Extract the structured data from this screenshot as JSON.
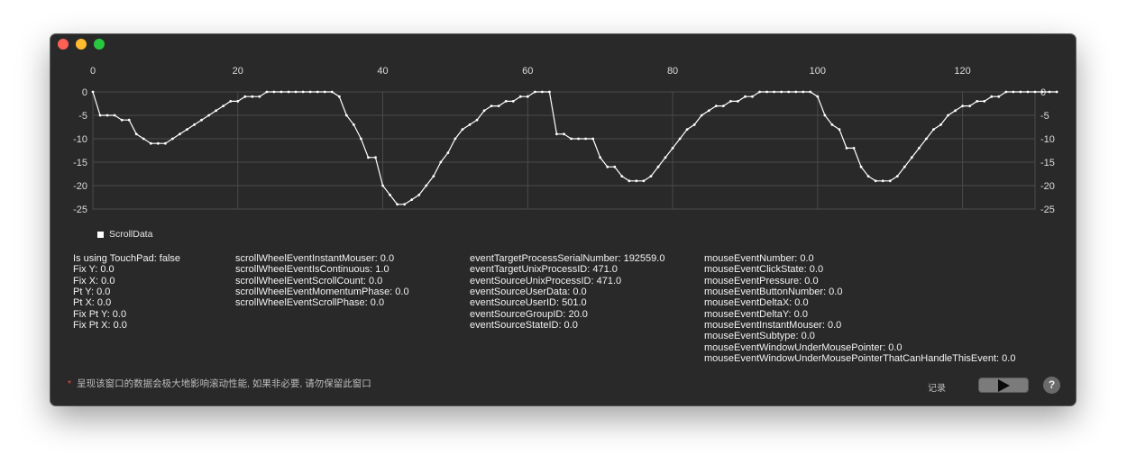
{
  "window": {
    "traffic_lights": [
      {
        "name": "close",
        "color": "#fe5f57"
      },
      {
        "name": "minimize",
        "color": "#febc2e"
      },
      {
        "name": "zoom",
        "color": "#28c840"
      }
    ]
  },
  "chart_data": {
    "type": "line",
    "series": [
      {
        "name": "ScrollData",
        "color": "#ffffff",
        "values": [
          0,
          -5,
          -5,
          -5,
          -6,
          -6,
          -9,
          -10,
          -11,
          -11,
          -11,
          -10,
          -9,
          -8,
          -7,
          -6,
          -5,
          -4,
          -3,
          -2,
          -2,
          -1,
          -1,
          -1,
          0,
          0,
          0,
          0,
          0,
          0,
          0,
          0,
          0,
          0,
          -1,
          -5,
          -7,
          -10,
          -14,
          -14,
          -20,
          -22,
          -24,
          -24,
          -23,
          -22,
          -20,
          -18,
          -15,
          -13,
          -10,
          -8,
          -7,
          -6,
          -4,
          -3,
          -3,
          -2,
          -2,
          -1,
          -1,
          0,
          0,
          0,
          -9,
          -9,
          -10,
          -10,
          -10,
          -10,
          -14,
          -16,
          -16,
          -18,
          -19,
          -19,
          -19,
          -18,
          -16,
          -14,
          -12,
          -10,
          -8,
          -7,
          -5,
          -4,
          -3,
          -3,
          -2,
          -2,
          -1,
          -1,
          0,
          0,
          0,
          0,
          0,
          0,
          0,
          0,
          -1,
          -5,
          -7,
          -8,
          -12,
          -12,
          -16,
          -18,
          -19,
          -19,
          -19,
          -18,
          -16,
          -14,
          -12,
          -10,
          -8,
          -7,
          -5,
          -4,
          -3,
          -3,
          -2,
          -2,
          -1,
          -1,
          0,
          0,
          0,
          0,
          0,
          0,
          0,
          0
        ]
      }
    ],
    "x_ticks": [
      "0",
      "20",
      "40",
      "60",
      "80",
      "100",
      "120"
    ],
    "y_ticks": [
      "0",
      "-5",
      "-10",
      "-15",
      "-20",
      "-25"
    ],
    "xlim": [
      0,
      130
    ],
    "ylim": [
      -25,
      0
    ],
    "grid": true,
    "axis_position_x": "top",
    "y_axis_sides": "both",
    "legend_position": "bottom-left"
  },
  "legend": {
    "label": "ScrollData"
  },
  "columns": [
    {
      "lines": [
        "Is using TouchPad: false",
        "Fix Y: 0.0",
        "Fix X: 0.0",
        "Pt Y: 0.0",
        "Pt X: 0.0",
        "Fix Pt Y: 0.0",
        "Fix Pt X: 0.0"
      ]
    },
    {
      "lines": [
        "scrollWheelEventInstantMouser: 0.0",
        "scrollWheelEventIsContinuous: 1.0",
        "scrollWheelEventScrollCount: 0.0",
        "scrollWheelEventMomentumPhase: 0.0",
        "scrollWheelEventScrollPhase: 0.0"
      ]
    },
    {
      "lines": [
        "eventTargetProcessSerialNumber: 192559.0",
        "eventTargetUnixProcessID: 471.0",
        "eventSourceUnixProcessID: 471.0",
        "eventSourceUserData: 0.0",
        "eventSourceUserID: 501.0",
        "eventSourceGroupID: 20.0",
        "eventSourceStateID: 0.0"
      ]
    },
    {
      "lines": [
        "mouseEventNumber: 0.0",
        "mouseEventClickState: 0.0",
        "mouseEventPressure: 0.0",
        "mouseEventButtonNumber: 0.0",
        "mouseEventDeltaX: 0.0",
        "mouseEventDeltaY: 0.0",
        "mouseEventInstantMouser: 0.0",
        "mouseEventSubtype: 0.0",
        "mouseEventWindowUnderMousePointer: 0.0",
        "mouseEventWindowUnderMousePointerThatCanHandleThisEvent: 0.0"
      ]
    }
  ],
  "footnote": {
    "star": "*",
    "text": "呈现该窗口的数据会极大地影响滚动性能, 如果非必要, 请勿保留此窗口"
  },
  "controls": {
    "record_label": "记录",
    "play_icon": "play-icon",
    "help_label": "?"
  }
}
